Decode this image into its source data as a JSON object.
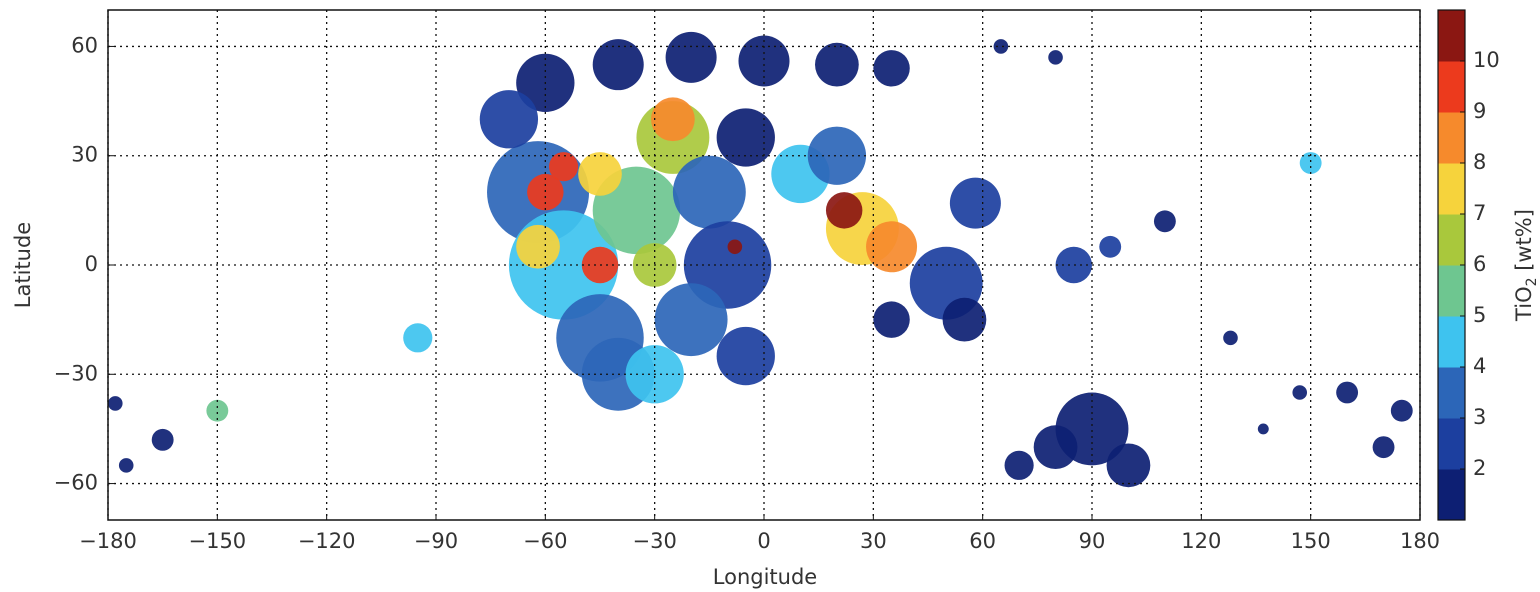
{
  "chart_data": {
    "type": "map",
    "xlabel": "Longitude",
    "ylabel": "Latitude",
    "xlim": [
      -180,
      180
    ],
    "ylim": [
      -70,
      70
    ],
    "xticks": [
      {
        "value": -180,
        "label": "−180"
      },
      {
        "value": -150,
        "label": "−150"
      },
      {
        "value": -120,
        "label": "−120"
      },
      {
        "value": -90,
        "label": "−90"
      },
      {
        "value": -60,
        "label": "−60"
      },
      {
        "value": -30,
        "label": "−30"
      },
      0,
      30,
      60,
      90,
      120,
      150,
      180
    ],
    "yticks": [
      {
        "value": -60,
        "label": "−60"
      },
      {
        "value": -30,
        "label": "−30"
      },
      0,
      30,
      60
    ],
    "grid": true,
    "colorbar": {
      "label": {
        "text": "TiO",
        "subscript": "2",
        "suffix": " [wt%]"
      },
      "lim": [
        1,
        11
      ],
      "ticks": [
        2,
        3,
        4,
        5,
        6,
        7,
        8,
        9,
        10
      ],
      "colors": [
        "#0d1f73",
        "#1c3f9f",
        "#2c66b8",
        "#3ec3ef",
        "#6ec690",
        "#a9c83c",
        "#f6d33c",
        "#f68a2c",
        "#ec3a1d",
        "#8b1712"
      ]
    },
    "lon": [
      -60,
      -40,
      -20,
      0,
      20,
      35,
      -62,
      -55,
      -45,
      -35,
      -25,
      -15,
      -10,
      -20,
      -5,
      -40,
      -30,
      -70,
      -5,
      10,
      20,
      27,
      35,
      50,
      58,
      35,
      85,
      55,
      22,
      -60,
      -55,
      -45,
      -25,
      -45,
      -30,
      -62,
      -8,
      90,
      80,
      100,
      70,
      160,
      175,
      170,
      150,
      -95,
      -165,
      -150,
      -175,
      -178,
      95,
      147,
      128,
      137,
      65,
      80,
      110
    ],
    "lat": [
      50,
      55,
      57,
      56,
      55,
      54,
      20,
      0,
      -20,
      15,
      35,
      20,
      0,
      -15,
      -25,
      -30,
      -30,
      40,
      35,
      25,
      30,
      10,
      5,
      -5,
      17,
      -15,
      0,
      -15,
      15,
      20,
      27,
      0,
      40,
      25,
      0,
      5,
      5,
      -45,
      -50,
      -55,
      -55,
      -35,
      -40,
      -50,
      28,
      -20,
      -48,
      -40,
      -55,
      -38,
      5,
      -35,
      -20,
      -45,
      60,
      57,
      12
    ],
    "radius": [
      8,
      7,
      7,
      7,
      6,
      5,
      14,
      15,
      12,
      12,
      10,
      10,
      12,
      10,
      8,
      10,
      8,
      8,
      8,
      8,
      8,
      10,
      7,
      10,
      7,
      5,
      5,
      6,
      5,
      5,
      4,
      5,
      6,
      6,
      6,
      6,
      2,
      10,
      6,
      6,
      4,
      3,
      3,
      3,
      3,
      4,
      3,
      3,
      2,
      2,
      3,
      2,
      2,
      1.5,
      2,
      2,
      3
    ],
    "values": [
      1.5,
      1.5,
      1.5,
      1.5,
      1.5,
      1.5,
      3.5,
      4.5,
      3.5,
      5.5,
      6.5,
      3.5,
      2.5,
      3.5,
      2.5,
      3.5,
      4.5,
      2.5,
      1.5,
      4.5,
      3.5,
      7.5,
      8.5,
      2.5,
      2.5,
      1.5,
      2.5,
      1.5,
      10.5,
      9.5,
      9.5,
      9.5,
      8.5,
      7.5,
      6.5,
      7.5,
      10.5,
      1.5,
      1.5,
      1.5,
      1.5,
      1.5,
      1.5,
      1.5,
      4.5,
      4.5,
      1.5,
      5.5,
      1.5,
      1.5,
      2.5,
      1.5,
      1.5,
      1.5,
      1.5,
      1.5,
      1.5
    ]
  }
}
